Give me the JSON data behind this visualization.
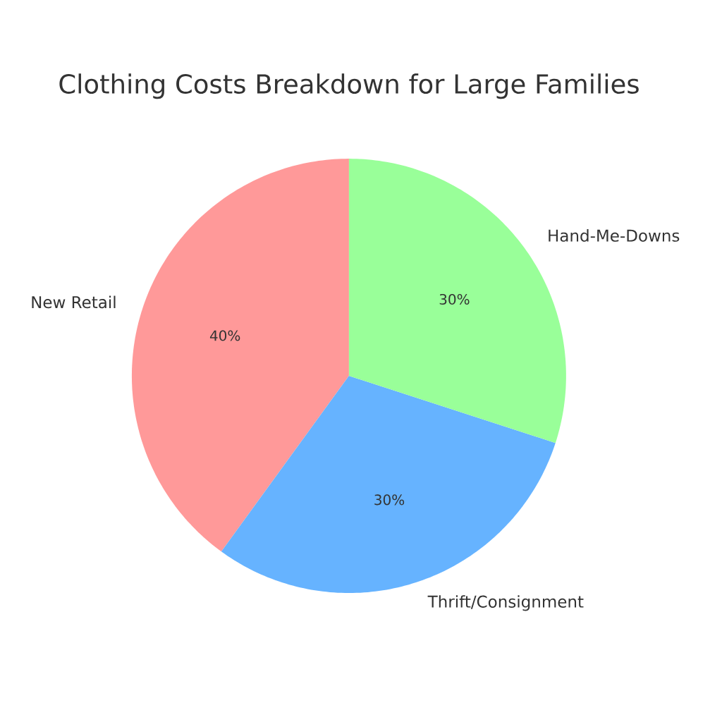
{
  "chart_data": {
    "type": "pie",
    "title": "Clothing Costs Breakdown for Large Families",
    "categories": [
      "New Retail",
      "Thrift/Consignment",
      "Hand-Me-Downs"
    ],
    "values": [
      40,
      30,
      30
    ],
    "colors": [
      "#ff9999",
      "#66b3ff",
      "#99ff99"
    ],
    "value_labels": [
      "40%",
      "30%",
      "30%"
    ]
  }
}
